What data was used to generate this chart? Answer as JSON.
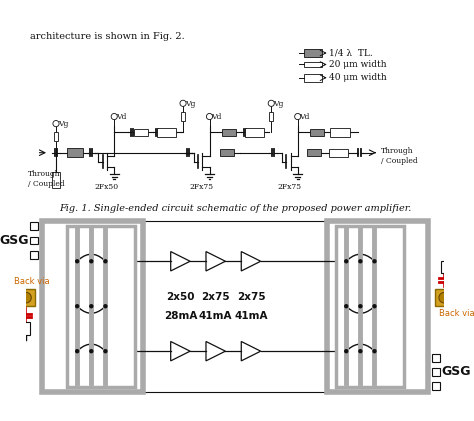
{
  "header_text": "architecture is shown in Fig. 2.",
  "fig_caption": "Fig. 1. Single-ended circuit schematic of the proposed power amplifier.",
  "legend_items": [
    "1/4 λ  TL.",
    "20 μm width",
    "40 μm width"
  ],
  "transistor_labels": [
    "2Fx50",
    "2Fx75",
    "2Fx75"
  ],
  "stage_labels": [
    [
      "2x50",
      "28mA"
    ],
    [
      "2x75",
      "41mA"
    ],
    [
      "2x75",
      "41mA"
    ]
  ],
  "gsg_label": "GSG",
  "back_via_label": "Back via",
  "bg_color": "#ffffff",
  "gray_color": "#888888",
  "dark_color": "#111111",
  "orange_color": "#cc6600",
  "red_color": "#cc0000",
  "gold_fill": "#d4a020",
  "gold_border": "#8a6800",
  "light_gray": "#aaaaaa",
  "mid_gray": "#999999"
}
